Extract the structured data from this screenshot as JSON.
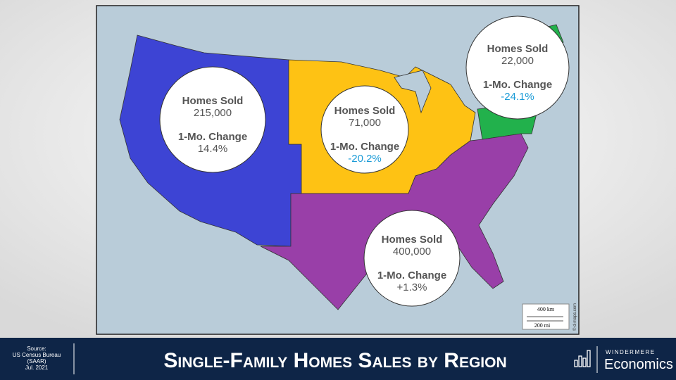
{
  "title": "Single-Family Homes Sales by Region",
  "source": [
    "Source:",
    "US Census Bureau",
    "(SAAR)",
    "Jul. 2021"
  ],
  "logo": {
    "brand": "WINDERMERE",
    "name": "Economics"
  },
  "map": {
    "scale_km": "400 km",
    "scale_mi": "200 mi",
    "credit": "© d-maps.com"
  },
  "regions": [
    {
      "sold_label": "Homes Sold",
      "sold": "215,000",
      "change_label": "1-Mo. Change",
      "change": "14.4%"
    },
    {
      "sold_label": "Homes Sold",
      "sold": "71,000",
      "change_label": "1-Mo. Change",
      "change": "-20.2%"
    },
    {
      "sold_label": "Homes Sold",
      "sold": "22,000",
      "change_label": "1-Mo. Change",
      "change": "-24.1%"
    },
    {
      "sold_label": "Homes Sold",
      "sold": "400,000",
      "change_label": "1-Mo. Change",
      "change": "+1.3%"
    }
  ]
}
